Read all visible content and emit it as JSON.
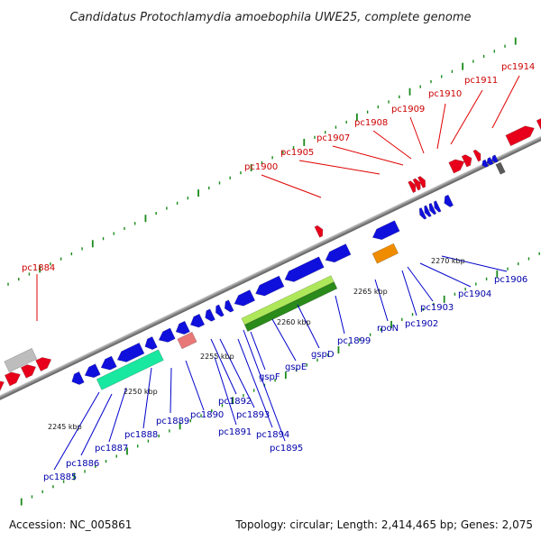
{
  "title": "Candidatus Protochlamydia amoebophila UWE25, complete genome",
  "footer": {
    "accession": "Accession: NC_005861",
    "summary": "Topology: circular; Length: 2,414,465 bp; Genes: 2,075"
  },
  "colors": {
    "forward_gene": "#e8001a",
    "reverse_gene": "#1010dd",
    "backbone": "#888888",
    "tick": "#1a8a1a",
    "upper_label": "#cc0000",
    "lower_label": "#0000aa",
    "rrna": "#19e8a0",
    "trna": "#e87878",
    "pseudo": "#bdbdbd",
    "gsp_light": "#aee85a",
    "gsp_dark": "#2a8a1a",
    "orange_feature": "#f08c00",
    "grey_feature": "#5a5a5a"
  },
  "scale_labels": [
    "2245 kbp",
    "2250 kbp",
    "2255 kbp",
    "2260 kbp",
    "2265 kbp",
    "2270 kbp"
  ],
  "upper_labels": [
    "pc1884",
    "pc1900",
    "pc1905",
    "pc1907",
    "pc1908",
    "pc1909",
    "pc1910",
    "pc1911",
    "pc1914"
  ],
  "lower_labels": [
    "pc1885",
    "pc1886",
    "pc1887",
    "pc1888",
    "pc1889",
    "pc1890",
    "pc1891",
    "pc1892",
    "pc1893",
    "pc1894",
    "pc1895",
    "gspF",
    "gspE",
    "gspD",
    "pc1899",
    "rpoN",
    "pc1902",
    "pc1903",
    "pc1904",
    "pc1906"
  ],
  "feature_types": [
    "forward-gene",
    "reverse-gene",
    "rrna",
    "trna",
    "pseudogene",
    "secretion-gene",
    "orange-feature",
    "grey-feature"
  ]
}
